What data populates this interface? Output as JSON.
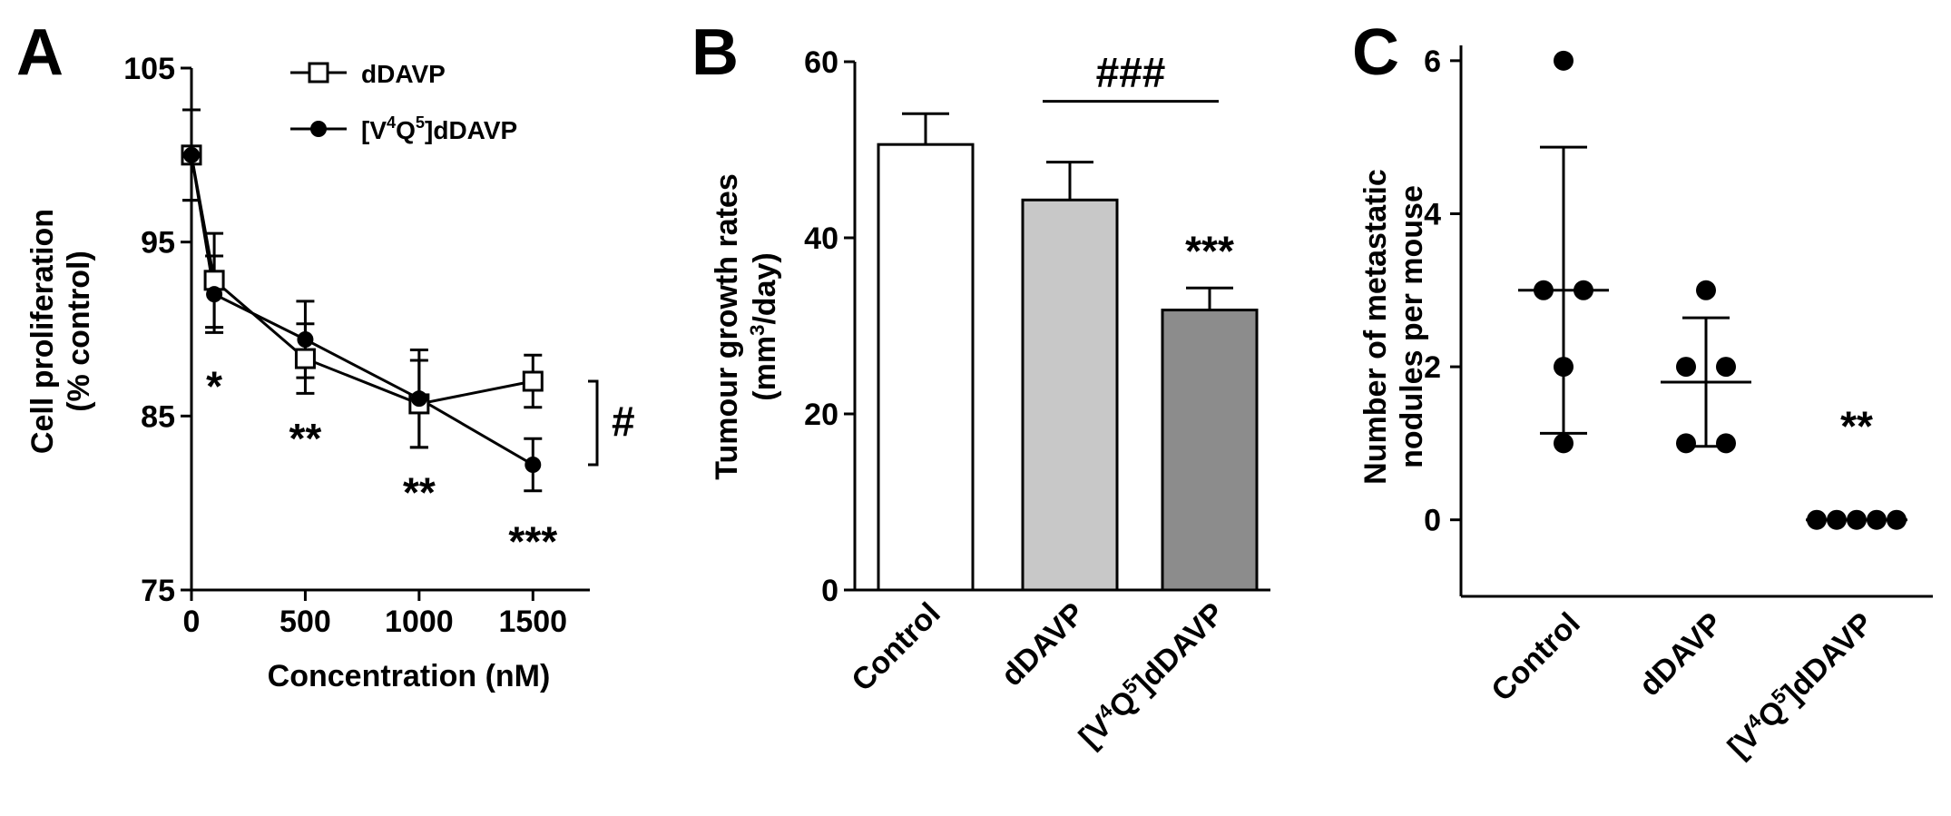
{
  "chart_data": [
    {
      "panel": "A",
      "type": "line",
      "xlabel": "Concentration (nM)",
      "ylabel_line1": "Cell proliferation",
      "ylabel_line2": "(% control)",
      "xlim": [
        0,
        1750
      ],
      "ylim": [
        75,
        105
      ],
      "xticks": [
        "0",
        "500",
        "1000",
        "1500"
      ],
      "yticks": [
        "75",
        "85",
        "95",
        "105"
      ],
      "series": [
        {
          "name": "dDAVP",
          "marker": "open-square",
          "x": [
            0,
            100,
            500,
            1000,
            1500
          ],
          "y": [
            100,
            92.8,
            88.3,
            85.7,
            87.0
          ],
          "err": [
            2.6,
            2.7,
            2.0,
            2.5,
            1.5
          ]
        },
        {
          "name": "[V4Q5]dDAVP",
          "label_parts": [
            "[V",
            "4",
            "Q",
            "5",
            "]dDAVP"
          ],
          "marker": "filled-circle",
          "x": [
            0,
            100,
            500,
            1000,
            1500
          ],
          "y": [
            100,
            92.0,
            89.4,
            86.0,
            82.2
          ],
          "err": [
            2.6,
            2.2,
            2.2,
            2.8,
            1.5
          ]
        }
      ],
      "annotations": [
        {
          "text": "*",
          "x": 100,
          "y": 86.6
        },
        {
          "text": "**",
          "x": 500,
          "y": 83.6
        },
        {
          "text": "**",
          "x": 1000,
          "y": 80.5
        },
        {
          "text": "***",
          "x": 1500,
          "y": 77.7
        },
        {
          "text": "#",
          "bracket_y": [
            87.0,
            82.2
          ]
        }
      ]
    },
    {
      "panel": "B",
      "type": "bar",
      "ylabel_line1": "Tumour growth rates",
      "ylabel_line2_parts": [
        "(mm",
        "3",
        "/day)"
      ],
      "categories": [
        "Control",
        "dDAVP",
        "[V4Q5]dDAVP"
      ],
      "category_label_parts": [
        [
          "Control"
        ],
        [
          "dDAVP"
        ],
        [
          "[V",
          "4",
          "Q",
          "5",
          "]dDAVP"
        ]
      ],
      "values": [
        50.6,
        44.3,
        31.8
      ],
      "err": [
        3.5,
        4.3,
        2.5
      ],
      "colors": [
        "#ffffff",
        "#c8c8c8",
        "#8c8c8c"
      ],
      "ylim": [
        0,
        60
      ],
      "yticks": [
        "0",
        "20",
        "40",
        "60"
      ],
      "annotations": [
        {
          "text": "***",
          "category": 2,
          "y": 38.5
        },
        {
          "text": "###",
          "between": [
            1,
            2
          ],
          "y": 55.5
        }
      ]
    },
    {
      "panel": "C",
      "type": "scatter",
      "ylabel_line1": "Number of metastatic",
      "ylabel_line2": "nodules per mouse",
      "categories": [
        "Control",
        "dDAVP",
        "[V4Q5]dDAVP"
      ],
      "category_label_parts": [
        [
          "Control"
        ],
        [
          "dDAVP"
        ],
        [
          "[V",
          "4",
          "Q",
          "5",
          "]dDAVP"
        ]
      ],
      "ylim": [
        -1,
        6.2
      ],
      "yticks": [
        "0",
        "2",
        "4",
        "6"
      ],
      "points": [
        [
          6,
          3,
          3,
          2,
          1
        ],
        [
          3,
          2,
          2,
          1,
          1
        ],
        [
          0,
          0,
          0,
          0,
          0
        ]
      ],
      "means": [
        3.0,
        1.8,
        0.0
      ],
      "sd_low": [
        1.13,
        0.96,
        0.0
      ],
      "sd_high": [
        4.87,
        2.64,
        0.0
      ],
      "annotations": [
        {
          "text": "**",
          "category": 2,
          "y": 1.2
        }
      ]
    }
  ]
}
